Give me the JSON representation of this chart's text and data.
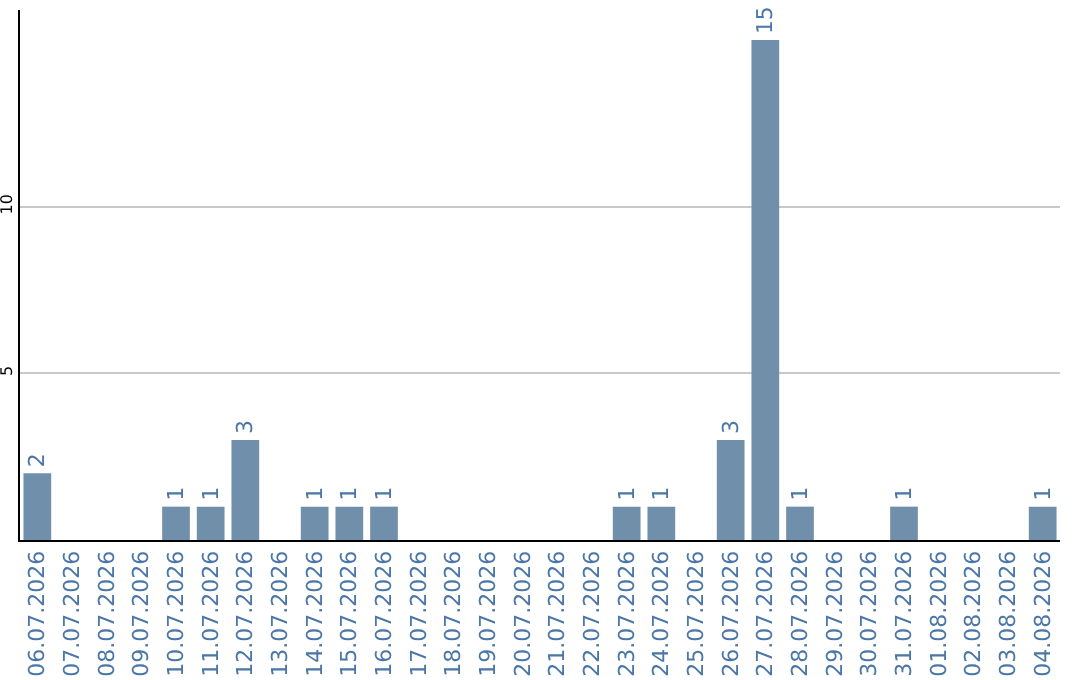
{
  "chart_data": {
    "type": "bar",
    "categories": [
      "06.07.2026",
      "07.07.2026",
      "08.07.2026",
      "09.07.2026",
      "10.07.2026",
      "11.07.2026",
      "12.07.2026",
      "13.07.2026",
      "14.07.2026",
      "15.07.2026",
      "16.07.2026",
      "17.07.2026",
      "18.07.2026",
      "19.07.2026",
      "20.07.2026",
      "21.07.2026",
      "22.07.2026",
      "23.07.2026",
      "24.07.2026",
      "25.07.2026",
      "26.07.2026",
      "27.07.2026",
      "28.07.2026",
      "29.07.2026",
      "30.07.2026",
      "31.07.2026",
      "01.08.2026",
      "02.08.2026",
      "03.08.2026",
      "04.08.2026"
    ],
    "values": [
      2,
      0,
      0,
      0,
      1,
      1,
      3,
      0,
      1,
      1,
      1,
      0,
      0,
      0,
      0,
      0,
      0,
      1,
      1,
      0,
      3,
      15,
      1,
      0,
      0,
      1,
      0,
      0,
      0,
      1
    ],
    "value_labels": [
      "2",
      null,
      null,
      null,
      "1",
      "1",
      "3",
      null,
      "1",
      "1",
      "1",
      null,
      null,
      null,
      null,
      null,
      null,
      "1",
      "1",
      null,
      "3",
      "15",
      "1",
      null,
      null,
      "1",
      null,
      null,
      null,
      "1"
    ],
    "color": "#6f8fab",
    "ylim": [
      0,
      15.9
    ],
    "yticks": [
      5,
      10
    ],
    "grid": "y"
  }
}
